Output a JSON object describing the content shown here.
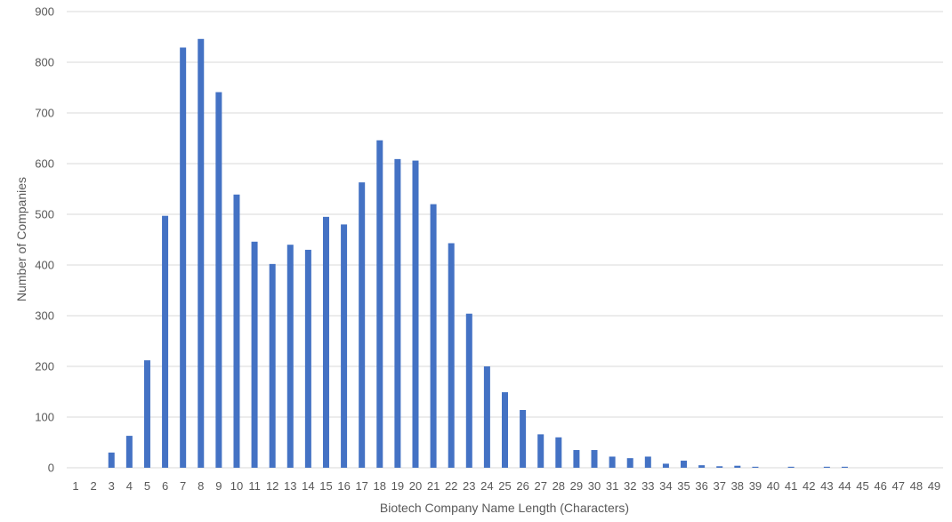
{
  "chart_data": {
    "type": "bar",
    "title": "",
    "xlabel": "Biotech Company Name Length (Characters)",
    "ylabel": "Number of Companies",
    "ylim": [
      0,
      900
    ],
    "yticks": [
      0,
      100,
      200,
      300,
      400,
      500,
      600,
      700,
      800,
      900
    ],
    "grid": true,
    "legend": "none",
    "bar_color": "#4472c4",
    "categories": [
      "1",
      "2",
      "3",
      "4",
      "5",
      "6",
      "7",
      "8",
      "9",
      "10",
      "11",
      "12",
      "13",
      "14",
      "15",
      "16",
      "17",
      "18",
      "19",
      "20",
      "21",
      "22",
      "23",
      "24",
      "25",
      "26",
      "27",
      "28",
      "29",
      "30",
      "31",
      "32",
      "33",
      "34",
      "35",
      "36",
      "37",
      "38",
      "39",
      "40",
      "41",
      "42",
      "43",
      "44",
      "45",
      "46",
      "47",
      "48",
      "49"
    ],
    "series": [
      {
        "values": [
          0,
          0,
          30,
          63,
          212,
          497,
          829,
          846,
          741,
          539,
          446,
          402,
          440,
          430,
          495,
          480,
          563,
          646,
          609,
          606,
          520,
          443,
          304,
          200,
          149,
          114,
          66,
          60,
          35,
          35,
          22,
          19,
          22,
          8,
          14,
          5,
          3,
          4,
          2,
          0,
          2,
          0,
          2,
          2,
          0,
          0,
          0,
          0,
          0
        ]
      }
    ]
  }
}
